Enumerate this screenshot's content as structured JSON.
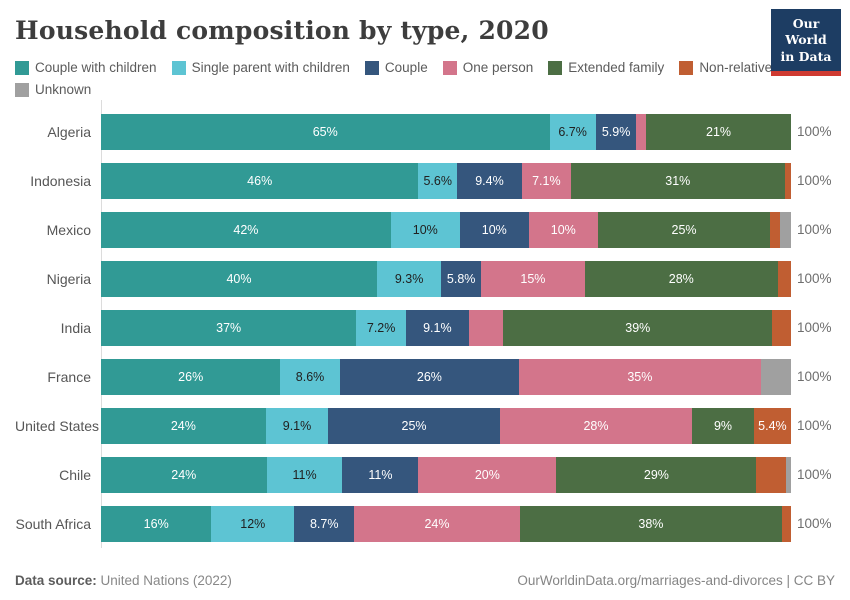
{
  "header": {
    "title": "Household composition by type, 2020",
    "logo": {
      "line1": "Our World",
      "line2": "in Data",
      "bg_color": "#1d3d63",
      "accent_color": "#cf3a31"
    }
  },
  "legend": {
    "items": [
      {
        "label": "Couple with children",
        "color": "#319a95"
      },
      {
        "label": "Single parent with children",
        "color": "#5dc4d3"
      },
      {
        "label": "Couple",
        "color": "#35567d"
      },
      {
        "label": "One person",
        "color": "#d3758b"
      },
      {
        "label": "Extended family",
        "color": "#4c6e44"
      },
      {
        "label": "Non-relatives",
        "color": "#c05e32"
      },
      {
        "label": "Unknown",
        "color": "#a0a0a0"
      }
    ]
  },
  "chart_data": {
    "type": "bar",
    "stacked": true,
    "orientation": "horizontal",
    "unit": "%",
    "x_axis_max": 100,
    "row_total_label": "100%",
    "title": "Household composition by type, 2020",
    "categories": [
      "Algeria",
      "Indonesia",
      "Mexico",
      "Nigeria",
      "India",
      "France",
      "United States",
      "Chile",
      "South Africa"
    ],
    "series": [
      {
        "name": "Couple with children",
        "color": "#319a95",
        "label_color": "#ffffff",
        "values": [
          65,
          46,
          42,
          40,
          37,
          26,
          24,
          24,
          16
        ],
        "labels": [
          "65%",
          "46%",
          "42%",
          "40%",
          "37%",
          "26%",
          "24%",
          "24%",
          "16%"
        ]
      },
      {
        "name": "Single parent with children",
        "color": "#5dc4d3",
        "label_color": "#212121",
        "values": [
          6.7,
          5.6,
          10,
          9.3,
          7.2,
          8.6,
          9.1,
          11,
          12
        ],
        "labels": [
          "6.7%",
          "5.6%",
          "10%",
          "9.3%",
          "7.2%",
          "8.6%",
          "9.1%",
          "11%",
          "12%"
        ]
      },
      {
        "name": "Couple",
        "color": "#35567d",
        "label_color": "#ffffff",
        "values": [
          5.9,
          9.4,
          10,
          5.8,
          9.1,
          26,
          25,
          11,
          8.7
        ],
        "labels": [
          "5.9%",
          "9.4%",
          "10%",
          "5.8%",
          "9.1%",
          "26%",
          "25%",
          "11%",
          "8.7%"
        ]
      },
      {
        "name": "One person",
        "color": "#d3758b",
        "label_color": "#ffffff",
        "values": [
          1.4,
          7.1,
          10,
          15,
          5.0,
          35,
          28,
          20,
          24
        ],
        "labels": [
          "",
          "7.1%",
          "10%",
          "15%",
          "",
          "35%",
          "28%",
          "20%",
          "24%"
        ]
      },
      {
        "name": "Extended family",
        "color": "#4c6e44",
        "label_color": "#ffffff",
        "values": [
          21,
          31,
          25,
          28,
          39,
          0,
          9,
          29,
          38
        ],
        "labels": [
          "21%",
          "31%",
          "25%",
          "28%",
          "39%",
          "",
          "9%",
          "29%",
          "38%"
        ]
      },
      {
        "name": "Non-relatives",
        "color": "#c05e32",
        "label_color": "#ffffff",
        "values": [
          0,
          0.9,
          1.4,
          1.9,
          2.7,
          0,
          5.4,
          4.3,
          1.3
        ],
        "labels": [
          "",
          "",
          "",
          "",
          "",
          "",
          "5.4%",
          "",
          ""
        ]
      },
      {
        "name": "Unknown",
        "color": "#a0a0a0",
        "label_color": "#ffffff",
        "values": [
          0,
          0,
          1.6,
          0,
          0,
          4.4,
          0,
          0.7,
          0
        ],
        "labels": [
          "",
          "",
          "",
          "",
          "",
          "",
          "",
          "",
          ""
        ]
      }
    ]
  },
  "footer": {
    "source_label": "Data source:",
    "source_value": " United Nations (2022)",
    "link": "OurWorldinData.org/marriages-and-divorces | CC BY"
  }
}
